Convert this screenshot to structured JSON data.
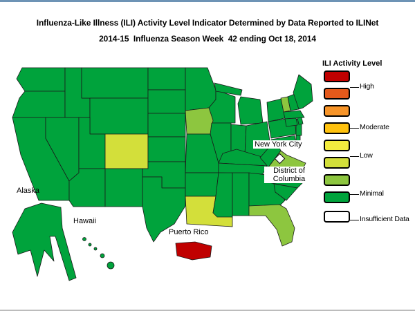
{
  "title": {
    "line1": "Influenza-Like Illness (ILI) Activity Level Indicator Determined by Data Reported to ILINet",
    "line2": "2014-15  Influenza Season Week  42 ending Oct 18, 2014"
  },
  "legend": {
    "title": "ILI Activity Level",
    "colors": [
      "#C00000",
      "#E4591B",
      "#F79428",
      "#FFC20E",
      "#F3EC3F",
      "#D3DF3A",
      "#8DC63F",
      "#00A33C",
      "#FFFFFF"
    ],
    "labels": [
      "High",
      "Moderate",
      "Low",
      "Minimal",
      "Insufficient Data"
    ]
  },
  "map": {
    "labels": {
      "alaska": "Alaska",
      "hawaii": "Hawaii",
      "puerto_rico": "Puerto Rico",
      "nyc": "New York City",
      "dc_line1": "District of",
      "dc_line2": "Columbia"
    },
    "default_level": 8,
    "state_levels": {
      "CO": 6,
      "LA": 6,
      "IA": 7,
      "VA": 7,
      "VT": 7,
      "FL": 7,
      "PR": 1
    }
  }
}
